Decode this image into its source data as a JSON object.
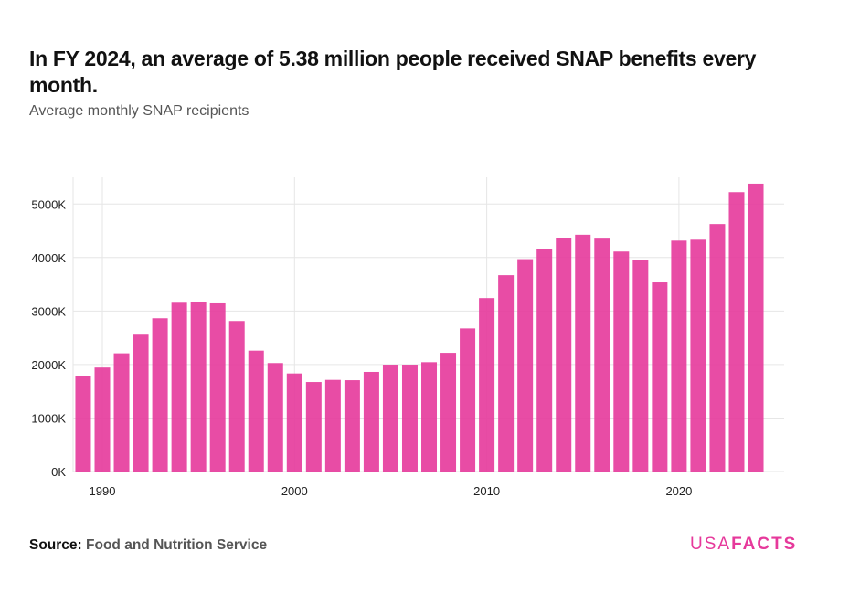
{
  "chart_data": {
    "type": "bar",
    "title": "In FY 2024, an average of 5.38 million people received SNAP benefits every month.",
    "subtitle": "Average monthly SNAP recipients",
    "xlabel": "",
    "ylabel": "",
    "x": [
      1989,
      1990,
      1991,
      1992,
      1993,
      1994,
      1995,
      1996,
      1997,
      1998,
      1999,
      2000,
      2001,
      2002,
      2003,
      2004,
      2005,
      2006,
      2007,
      2008,
      2009,
      2010,
      2011,
      2012,
      2013,
      2014,
      2015,
      2016,
      2017,
      2018,
      2019,
      2020,
      2021,
      2022,
      2023,
      2024
    ],
    "values": [
      1777,
      1944,
      2210,
      2558,
      2865,
      3155,
      3172,
      3143,
      2814,
      2260,
      2028,
      1833,
      1673,
      1713,
      1707,
      1862,
      1998,
      1998,
      2044,
      2219,
      2675,
      3242,
      3670,
      3970,
      4165,
      4358,
      4426,
      4353,
      4112,
      3952,
      3535,
      4316,
      4333,
      4626,
      5222,
      5381
    ],
    "unit": "thousands",
    "ylim": [
      0,
      5500
    ],
    "yticks": [
      0,
      1000,
      2000,
      3000,
      4000,
      5000
    ],
    "ytick_labels": [
      "0K",
      "1000K",
      "2000K",
      "3000K",
      "4000K",
      "5000K"
    ],
    "xticks": [
      1990,
      2000,
      2010,
      2020
    ],
    "xtick_labels": [
      "1990",
      "2000",
      "2010",
      "2020"
    ],
    "grid": true,
    "bar_color": "#e6399b"
  },
  "footer": {
    "source_label": "Source:",
    "source_text": "Food and Nutrition Service",
    "logo_part1": "USA",
    "logo_part2": "FACTS"
  }
}
